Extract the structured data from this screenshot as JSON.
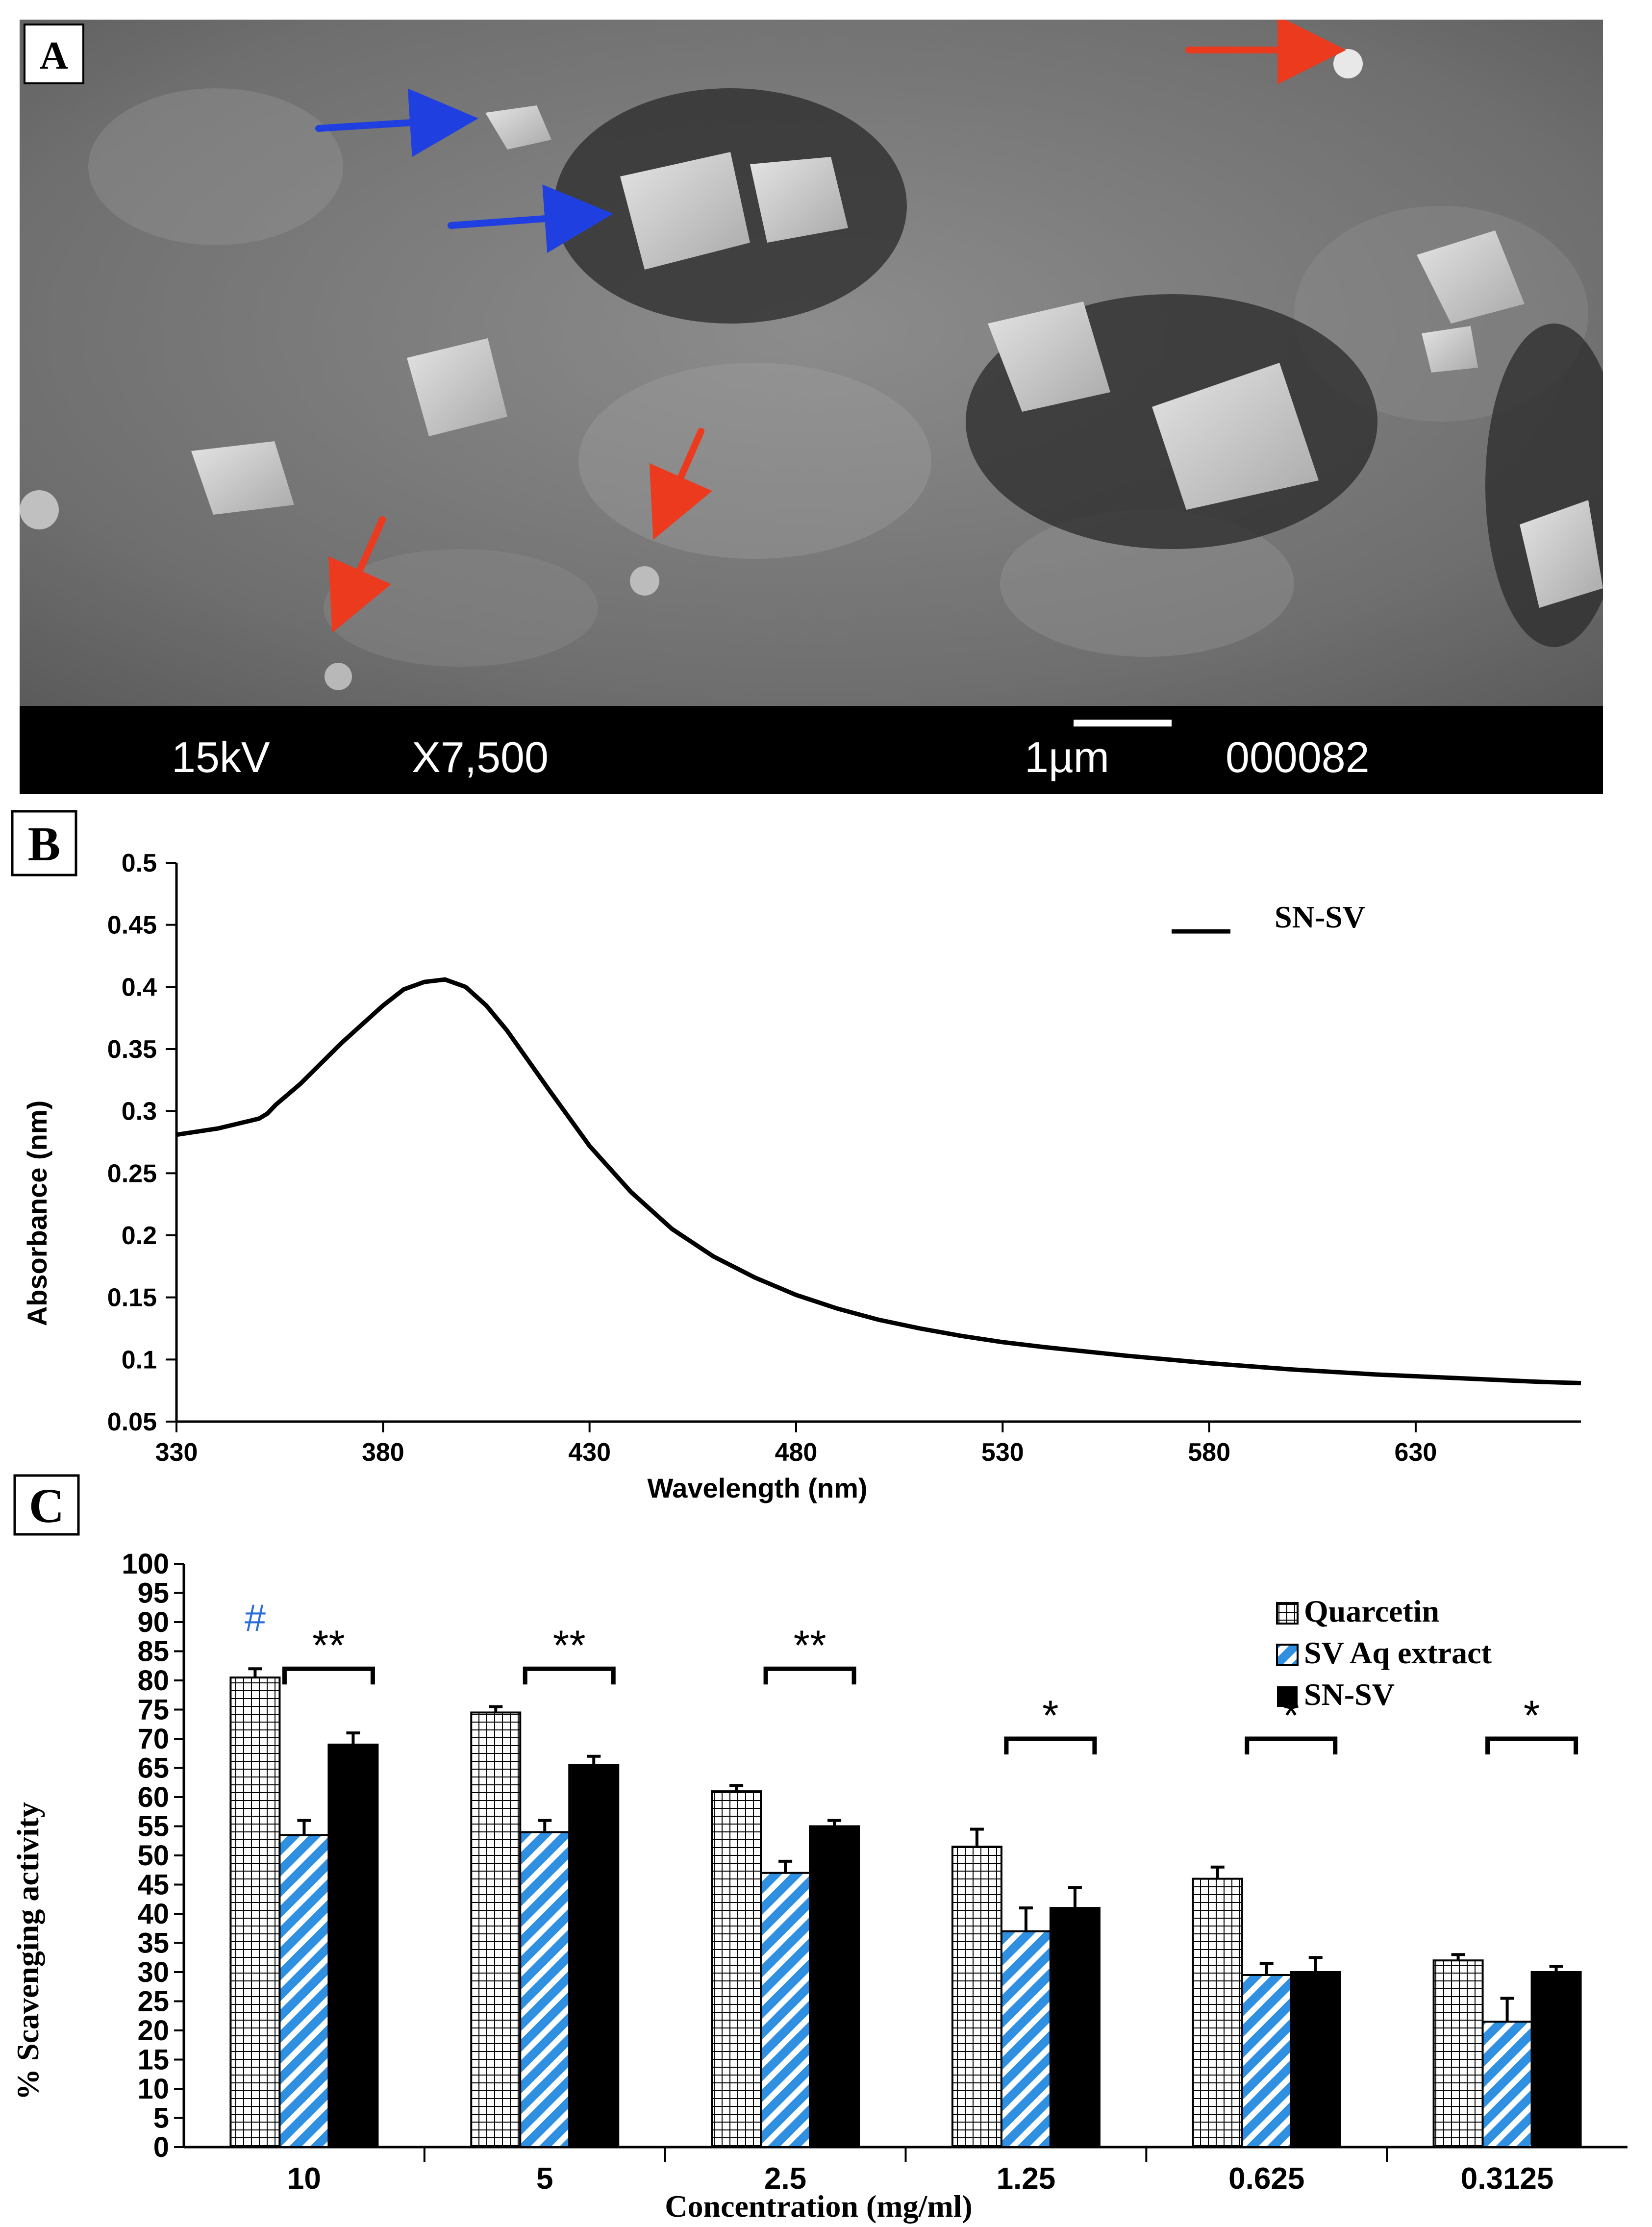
{
  "panel_a": {
    "label": "A",
    "bar": {
      "voltage": "15kV",
      "magnification": "X7,500",
      "scale": "1µm",
      "image_no": "000082"
    }
  },
  "panel_b": {
    "label": "B"
  },
  "panel_c": {
    "label": "C"
  },
  "colors": {
    "sem_blue_arrow": "#1f3fe0",
    "sem_red_arrow": "#ec3a1e",
    "hash": "#2a6fd6",
    "sv_blue": "#2f8fe0"
  },
  "chart_data": [
    {
      "type": "line",
      "xlabel": "Wavelength (nm)",
      "ylabel": "Absorbance (nm)",
      "xlim": [
        330,
        670
      ],
      "ylim": [
        0.05,
        0.5
      ],
      "xticks": [
        330,
        380,
        430,
        480,
        530,
        580,
        630
      ],
      "yticks": [
        0.05,
        0.1,
        0.15,
        0.2,
        0.25,
        0.3,
        0.35,
        0.4,
        0.45,
        0.5
      ],
      "legend": "top-right",
      "grid": false,
      "series": [
        {
          "name": "SN-SV",
          "x": [
            330,
            340,
            350,
            352,
            354,
            360,
            370,
            380,
            385,
            390,
            395,
            400,
            405,
            410,
            420,
            430,
            440,
            450,
            460,
            470,
            480,
            490,
            500,
            510,
            520,
            530,
            540,
            560,
            580,
            600,
            620,
            640,
            660,
            670
          ],
          "y": [
            0.281,
            0.286,
            0.294,
            0.298,
            0.305,
            0.322,
            0.355,
            0.385,
            0.398,
            0.404,
            0.406,
            0.4,
            0.385,
            0.365,
            0.318,
            0.272,
            0.235,
            0.205,
            0.183,
            0.166,
            0.152,
            0.141,
            0.132,
            0.125,
            0.119,
            0.114,
            0.11,
            0.103,
            0.097,
            0.092,
            0.088,
            0.085,
            0.082,
            0.081
          ]
        }
      ]
    },
    {
      "type": "bar",
      "xlabel": "Concentration (mg/ml)",
      "ylabel": "% Scavenging activity",
      "ylim": [
        0,
        100
      ],
      "yticks": [
        0,
        5,
        10,
        15,
        20,
        25,
        30,
        35,
        40,
        45,
        50,
        55,
        60,
        65,
        70,
        75,
        80,
        85,
        90,
        95,
        100
      ],
      "legend": "top-right",
      "grid": false,
      "categories": [
        "10",
        "5",
        "2.5",
        "1.25",
        "0.625",
        "0.3125"
      ],
      "series": [
        {
          "name": "Quarcetin",
          "values": [
            80.5,
            74.5,
            61,
            51.5,
            46,
            32
          ],
          "errors": [
            1.5,
            1,
            1,
            3,
            2,
            1
          ]
        },
        {
          "name": "SV Aq extract",
          "values": [
            53.5,
            54,
            47,
            37,
            29.5,
            21.5
          ],
          "errors": [
            2.5,
            2,
            2,
            4,
            2,
            4
          ]
        },
        {
          "name": "SN-SV",
          "values": [
            69,
            65.5,
            55,
            41,
            30,
            30
          ],
          "errors": [
            2,
            1.5,
            1,
            3.5,
            2.5,
            1
          ]
        }
      ],
      "annotations": [
        "#",
        "**",
        "**",
        "**",
        "*",
        "*",
        "*"
      ]
    }
  ]
}
